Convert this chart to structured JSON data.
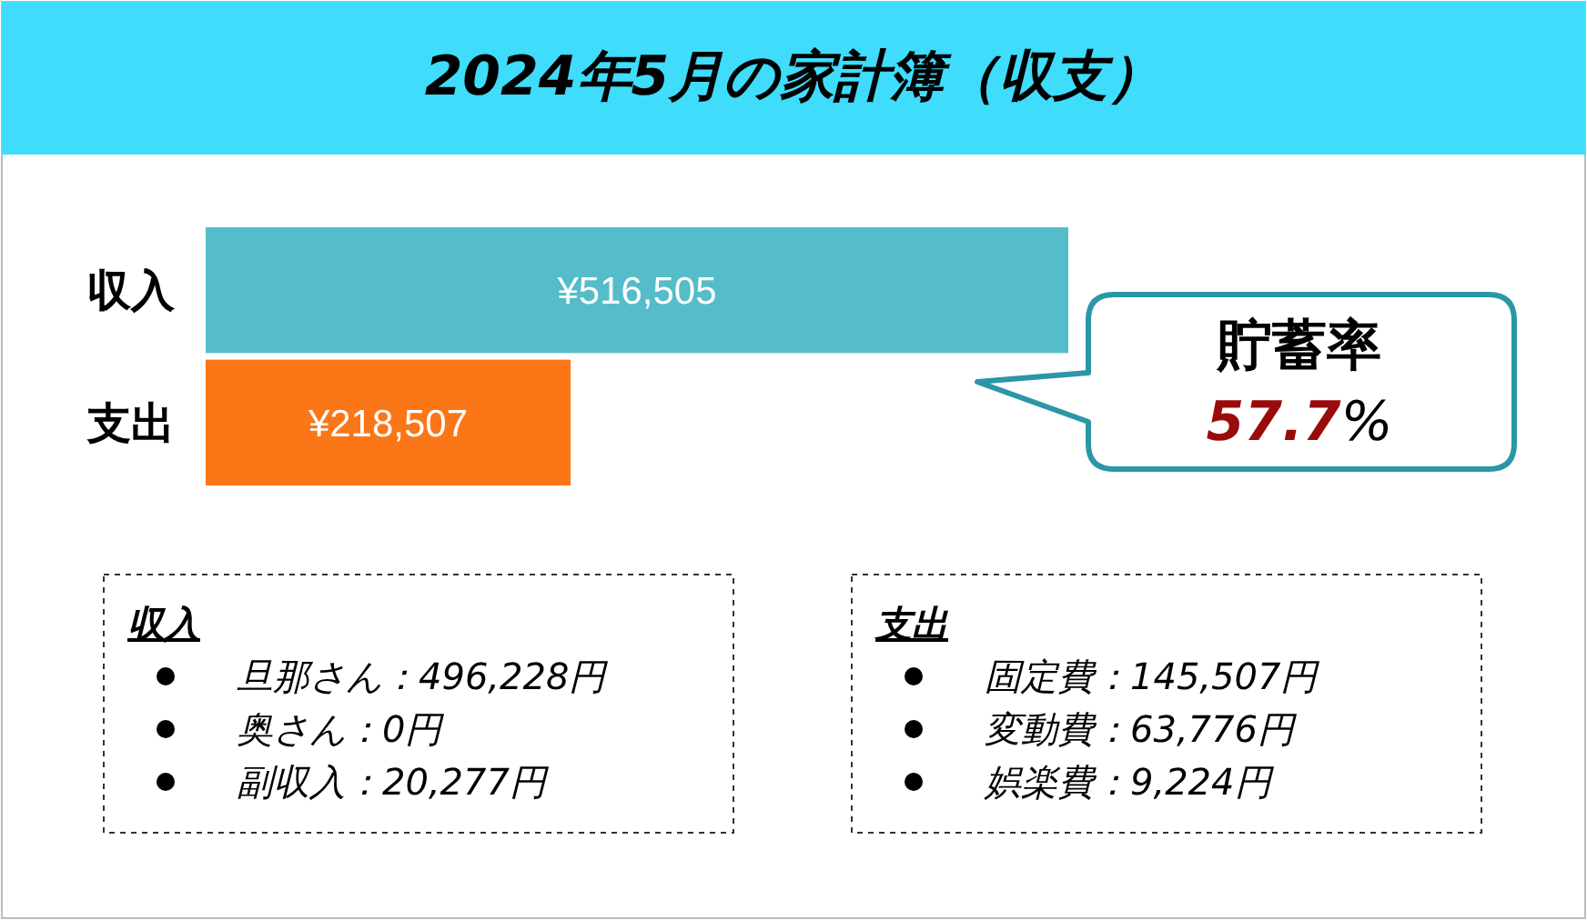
{
  "chart_data": {
    "type": "bar",
    "orientation": "horizontal",
    "title": "2024年5月の家計簿（収支）",
    "categories": [
      "収入",
      "支出"
    ],
    "values": [
      516505,
      218507
    ],
    "colors": [
      "#55bcc9",
      "#fb7617"
    ],
    "value_labels": [
      "¥516,505",
      "¥218,507"
    ],
    "annotations": [
      "貯蓄率",
      "57.7%",
      "収入",
      "旦那さん：496,228円",
      "奥さん：0円",
      "副収入：20,277円",
      "支出",
      "固定費：145,507円",
      "変動費：63,776円",
      "娯楽費：9,224円"
    ]
  }
}
